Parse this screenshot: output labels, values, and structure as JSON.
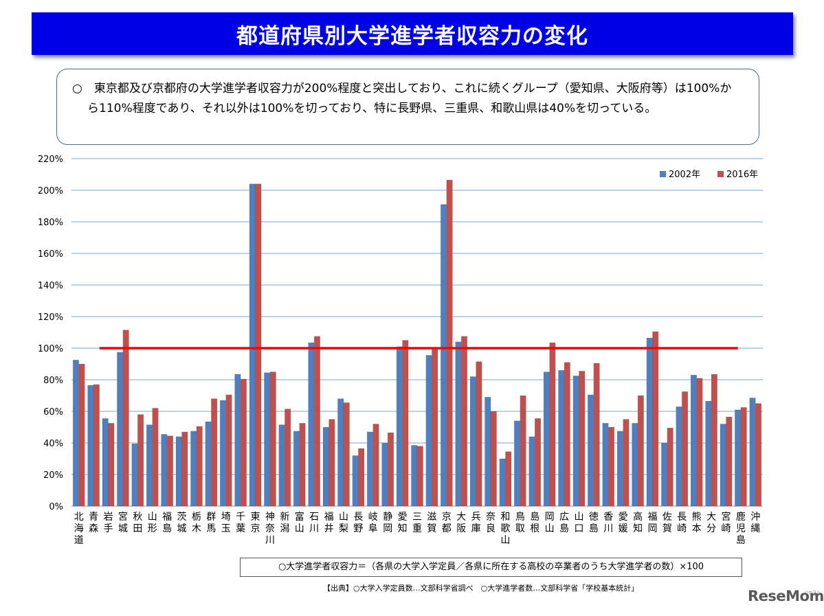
{
  "header": {
    "title": "都道府県別大学進学者収容力の変化"
  },
  "note": {
    "text": "○　東京都及び京都府の大学進学者収容力が200%程度と突出しており、これに続くグループ（愛知県、大阪府等）は100%から110%程度であり、それ以外は100%を切っており、特に長野県、三重県、和歌山県は40%を切っている。"
  },
  "footer": {
    "formula": "○大学進学者収容力＝（各県の大学入学定員／各県に所在する高校の卒業者のうち大学進学者の数）×100",
    "source": "【出典】○大学入学定員数…文部科学省調べ　○大学進学者数…文部科学省「学校基本統計」",
    "logo": "ReseMom",
    "logo_small": "リセマム"
  },
  "colors": {
    "series_2002": "#4f7fbf",
    "series_2016": "#c0504d",
    "reference_line": "#ff0000",
    "gridline": "#7f9fcf",
    "title_bg": "#0000e6"
  },
  "chart_data": {
    "type": "bar",
    "title": "",
    "xlabel": "",
    "ylabel": "",
    "ylim": [
      0,
      220
    ],
    "y_ticks": [
      "0%",
      "20%",
      "40%",
      "60%",
      "80%",
      "100%",
      "120%",
      "140%",
      "160%",
      "180%",
      "200%",
      "220%"
    ],
    "grid": true,
    "legend": "top-right",
    "reference_line": 100,
    "categories": [
      "北海道",
      "青森",
      "岩手",
      "宮城",
      "秋田",
      "山形",
      "福島",
      "茨城",
      "栃木",
      "群馬",
      "埼玉",
      "千葉",
      "東京",
      "神奈川",
      "新潟",
      "富山",
      "石川",
      "福井",
      "山梨",
      "長野",
      "岐阜",
      "静岡",
      "愛知",
      "三重",
      "滋賀",
      "京都",
      "大阪",
      "兵庫",
      "奈良",
      "和歌山",
      "鳥取",
      "島根",
      "岡山",
      "広島",
      "山口",
      "徳島",
      "香川",
      "愛媛",
      "高知",
      "福岡",
      "佐賀",
      "長崎",
      "熊本",
      "大分",
      "宮崎",
      "鹿児島",
      "沖縄"
    ],
    "series": [
      {
        "name": "2002年",
        "values": [
          92.5,
          76.5,
          55.5,
          97.5,
          39.5,
          51.5,
          45.5,
          44,
          47.5,
          53.5,
          67,
          83.5,
          204,
          84.5,
          51.5,
          47.5,
          103.5,
          50,
          68,
          32,
          47,
          40,
          101,
          38.5,
          95.5,
          191,
          104,
          82,
          69,
          30,
          54,
          44,
          85,
          86,
          82.5,
          70.5,
          52.5,
          47.5,
          52.5,
          106.5,
          40,
          63,
          83,
          66.5,
          52,
          61,
          68.5
        ]
      },
      {
        "name": "2016年",
        "values": [
          90,
          77,
          52.5,
          111.5,
          58,
          62,
          44.5,
          47,
          50.5,
          68,
          70.5,
          80.5,
          204,
          85,
          61.5,
          52.5,
          107.5,
          55,
          65.5,
          36.5,
          52,
          46.5,
          105,
          38,
          100,
          206.5,
          107.5,
          91.5,
          60,
          34.5,
          70,
          55.5,
          103.5,
          91,
          85.5,
          90.5,
          50,
          55,
          70,
          110.5,
          49.5,
          72.5,
          81,
          83.5,
          56.5,
          62.5,
          65
        ]
      }
    ]
  }
}
